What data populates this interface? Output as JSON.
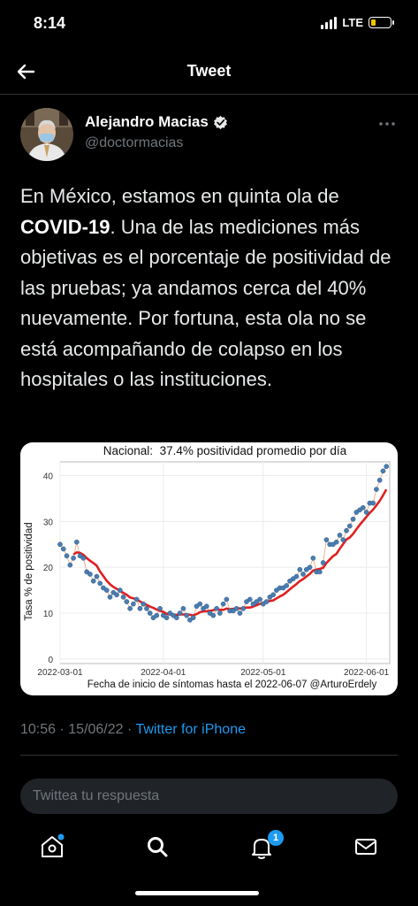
{
  "status": {
    "time": "8:14",
    "network": "LTE",
    "battery_level": 0.25
  },
  "header": {
    "title": "Tweet",
    "back_icon": "arrow-left-icon"
  },
  "author": {
    "name": "Alejandro Macias",
    "handle": "@doctormacias",
    "verified": true
  },
  "tweet": {
    "text_start": "En México, estamos en quinta ola de ",
    "text_bold": "COVID-19",
    "text_end": ". Una de las mediciones más objetivas es el porcentaje de positividad de las pruebas; ya andamos cerca del 40% nuevamente. Por fortuna, esta ola no se está acompañando de colapso en los hospitales o las instituciones."
  },
  "chart_data": {
    "type": "scatter",
    "title": "Nacional:  37.4% positividad promedio por día",
    "xlabel": "Fecha de inicio de síntomas hasta el 2022-06-07 @ArturoErdely",
    "ylabel": "Tasa % de positividad",
    "x_ticks": [
      "2022-03-01",
      "2022-04-01",
      "2022-05-01",
      "2022-06-01"
    ],
    "y_ticks": [
      0,
      10,
      20,
      30,
      40
    ],
    "ylim": [
      -1,
      43
    ],
    "x_days": [
      0,
      99
    ],
    "grid": true,
    "series": [
      {
        "kind": "points",
        "x": [
          "2022-03-01",
          "2022-03-02",
          "2022-03-03",
          "2022-03-04",
          "2022-03-05",
          "2022-03-06",
          "2022-03-07",
          "2022-03-08",
          "2022-03-09",
          "2022-03-10",
          "2022-03-11",
          "2022-03-12",
          "2022-03-13",
          "2022-03-14",
          "2022-03-15",
          "2022-03-16",
          "2022-03-17",
          "2022-03-18",
          "2022-03-19",
          "2022-03-20",
          "2022-03-21",
          "2022-03-22",
          "2022-03-23",
          "2022-03-24",
          "2022-03-25",
          "2022-03-26",
          "2022-03-27",
          "2022-03-28",
          "2022-03-29",
          "2022-03-30",
          "2022-03-31",
          "2022-04-01",
          "2022-04-02",
          "2022-04-03",
          "2022-04-04",
          "2022-04-05",
          "2022-04-06",
          "2022-04-07",
          "2022-04-08",
          "2022-04-09",
          "2022-04-10",
          "2022-04-11",
          "2022-04-12",
          "2022-04-13",
          "2022-04-14",
          "2022-04-15",
          "2022-04-16",
          "2022-04-17",
          "2022-04-18",
          "2022-04-19",
          "2022-04-20",
          "2022-04-21",
          "2022-04-22",
          "2022-04-23",
          "2022-04-24",
          "2022-04-25",
          "2022-04-26",
          "2022-04-27",
          "2022-04-28",
          "2022-04-29",
          "2022-04-30",
          "2022-05-01",
          "2022-05-02",
          "2022-05-03",
          "2022-05-04",
          "2022-05-05",
          "2022-05-06",
          "2022-05-07",
          "2022-05-08",
          "2022-05-09",
          "2022-05-10",
          "2022-05-11",
          "2022-05-12",
          "2022-05-13",
          "2022-05-14",
          "2022-05-15",
          "2022-05-16",
          "2022-05-17",
          "2022-05-18",
          "2022-05-19",
          "2022-05-20",
          "2022-05-21",
          "2022-05-22",
          "2022-05-23",
          "2022-05-24",
          "2022-05-25",
          "2022-05-26",
          "2022-05-27",
          "2022-05-28",
          "2022-05-29",
          "2022-05-30",
          "2022-05-31",
          "2022-06-01",
          "2022-06-02",
          "2022-06-03",
          "2022-06-04",
          "2022-06-05",
          "2022-06-06",
          "2022-06-07"
        ],
        "values": [
          25,
          24,
          22.5,
          20.5,
          22,
          25.5,
          22.5,
          22,
          19,
          18.5,
          17,
          18,
          16.5,
          15.5,
          15,
          13.5,
          14.5,
          14,
          15,
          13.5,
          12.5,
          11,
          12,
          13,
          11,
          12,
          11,
          10,
          9,
          9.5,
          11,
          9.5,
          9,
          10,
          9.5,
          9,
          10,
          11,
          9.5,
          8.5,
          9,
          11.5,
          12,
          11,
          11.5,
          10,
          9.5,
          11,
          10,
          12,
          13,
          10.5,
          10.5,
          11,
          10,
          11,
          12.5,
          13,
          12,
          12.5,
          13,
          12,
          12.5,
          13.5,
          14,
          15,
          15.5,
          15.5,
          16,
          17,
          17.5,
          18,
          19.5,
          18.5,
          19.5,
          20,
          22,
          19,
          19,
          21,
          26,
          25,
          25,
          25.5,
          27,
          26,
          28,
          29,
          30.5,
          32,
          32.5,
          33,
          32,
          34,
          34,
          37,
          39,
          41,
          42
        ]
      },
      {
        "kind": "line",
        "name": "promedio",
        "values_from": "moving-average-7"
      }
    ]
  },
  "meta": {
    "time": "10:56",
    "date": "15/06/22",
    "source": "Twitter for iPhone"
  },
  "reply": {
    "placeholder": "Twittea tu respuesta"
  },
  "nav": {
    "notifications_count": "1"
  },
  "colors": {
    "accent": "#1d9bf0",
    "curve": "#e02020",
    "points": "#4a7db0"
  }
}
